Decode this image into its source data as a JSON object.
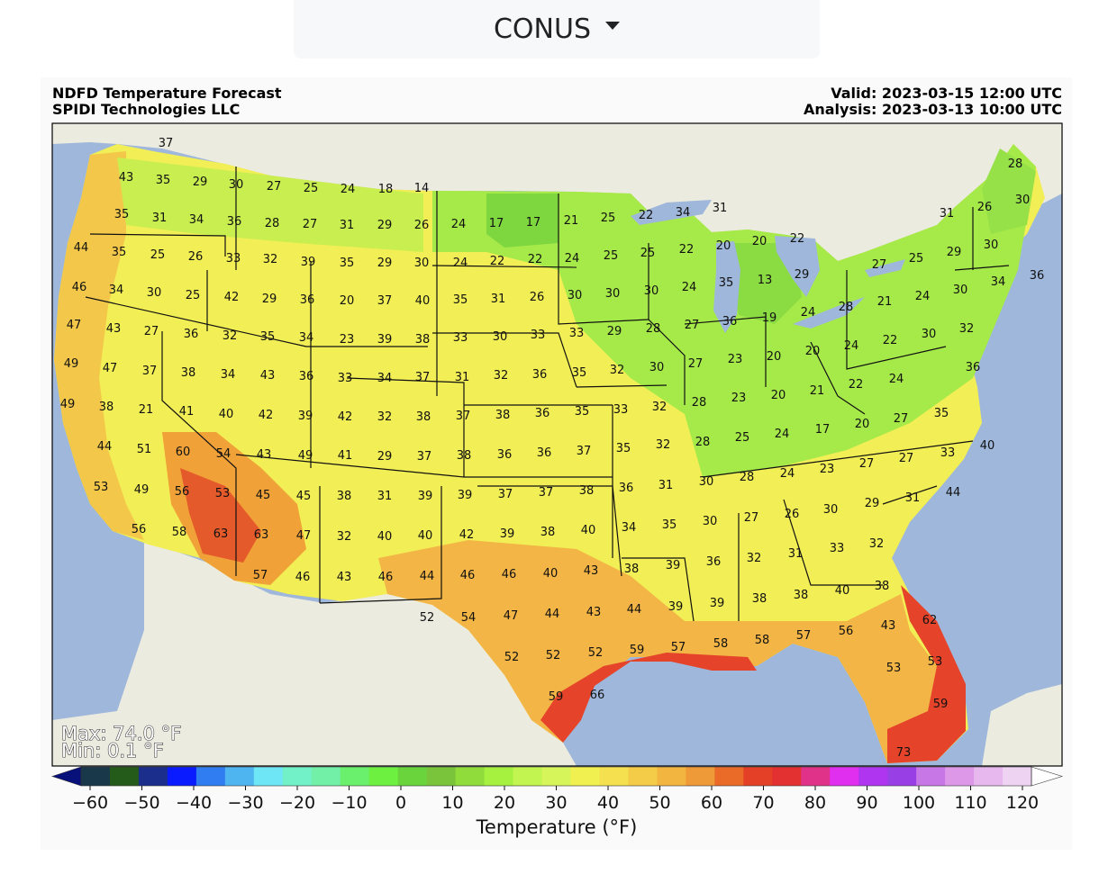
{
  "region_selector": {
    "value": "CONUS"
  },
  "header": {
    "title": "NDFD Temperature Forecast",
    "org": "SPIDI Technologies LLC",
    "valid": "Valid: 2023-03-15 12:00 UTC",
    "analysis": "Analysis: 2023-03-13 10:00 UTC"
  },
  "stats": {
    "max": "Max: 74.0 °F",
    "min": "Min: 0.1 °F"
  },
  "colorbar": {
    "label": "Temperature (°F)",
    "ticks": [
      "−60",
      "−50",
      "−40",
      "−30",
      "−20",
      "−10",
      "0",
      "10",
      "20",
      "30",
      "40",
      "50",
      "60",
      "70",
      "80",
      "90",
      "100",
      "110",
      "120"
    ],
    "colors": [
      "#08107a",
      "#19394a",
      "#245a1a",
      "#1b2e8c",
      "#0a1cff",
      "#2f7df0",
      "#4fb5f0",
      "#6ee6f5",
      "#72f0c8",
      "#72f0a8",
      "#6bf06e",
      "#6ef040",
      "#6ad43c",
      "#79c43a",
      "#8fdc3a",
      "#a6f040",
      "#c2f550",
      "#d6f55a",
      "#f0f050",
      "#f5e050",
      "#f5cc48",
      "#f2b540",
      "#ef9a38",
      "#ea6a28",
      "#e44028",
      "#e33030",
      "#e03288",
      "#e12ff0",
      "#b035f0",
      "#9840e6",
      "#c878e6",
      "#dd98e8",
      "#e6b8ee",
      "#efd3f3",
      "#ffffff"
    ],
    "range": [
      -60,
      120
    ]
  },
  "stations": [
    [
      "37",
      184,
      158
    ],
    [
      "43",
      140,
      196
    ],
    [
      "35",
      181,
      199
    ],
    [
      "29",
      222,
      201
    ],
    [
      "30",
      262,
      204
    ],
    [
      "27",
      304,
      206
    ],
    [
      "25",
      345,
      208
    ],
    [
      "24",
      386,
      209
    ],
    [
      "18",
      428,
      209
    ],
    [
      "14",
      468,
      208
    ],
    [
      "35",
      135,
      237
    ],
    [
      "31",
      177,
      241
    ],
    [
      "34",
      218,
      243
    ],
    [
      "36",
      260,
      245
    ],
    [
      "28",
      302,
      247
    ],
    [
      "27",
      344,
      248
    ],
    [
      "31",
      385,
      249
    ],
    [
      "29",
      427,
      249
    ],
    [
      "26",
      468,
      249
    ],
    [
      "24",
      509,
      248
    ],
    [
      "17",
      551,
      247
    ],
    [
      "17",
      592,
      246
    ],
    [
      "21",
      634,
      244
    ],
    [
      "25",
      675,
      241
    ],
    [
      "22",
      717,
      238
    ],
    [
      "34",
      758,
      235
    ],
    [
      "31",
      799,
      230
    ],
    [
      "26",
      1093,
      229
    ],
    [
      "30",
      1135,
      221
    ],
    [
      "28",
      1127,
      181
    ],
    [
      "31",
      1051,
      236
    ],
    [
      "44",
      90,
      274
    ],
    [
      "35",
      132,
      279
    ],
    [
      "25",
      175,
      282
    ],
    [
      "26",
      217,
      284
    ],
    [
      "33",
      259,
      286
    ],
    [
      "32",
      300,
      287
    ],
    [
      "39",
      342,
      290
    ],
    [
      "35",
      385,
      291
    ],
    [
      "29",
      427,
      291
    ],
    [
      "30",
      468,
      291
    ],
    [
      "24",
      511,
      291
    ],
    [
      "22",
      552,
      289
    ],
    [
      "22",
      594,
      287
    ],
    [
      "24",
      635,
      286
    ],
    [
      "25",
      678,
      283
    ],
    [
      "25",
      719,
      280
    ],
    [
      "22",
      762,
      276
    ],
    [
      "20",
      803,
      272
    ],
    [
      "20",
      843,
      267
    ],
    [
      "22",
      885,
      264
    ],
    [
      "27",
      976,
      293
    ],
    [
      "25",
      1017,
      286
    ],
    [
      "29",
      1059,
      279
    ],
    [
      "30",
      1100,
      271
    ],
    [
      "36",
      1151,
      305
    ],
    [
      "34",
      1108,
      312
    ],
    [
      "46",
      88,
      318
    ],
    [
      "34",
      129,
      321
    ],
    [
      "30",
      171,
      324
    ],
    [
      "25",
      214,
      327
    ],
    [
      "42",
      257,
      329
    ],
    [
      "29",
      299,
      331
    ],
    [
      "36",
      341,
      332
    ],
    [
      "20",
      385,
      333
    ],
    [
      "37",
      427,
      333
    ],
    [
      "40",
      469,
      333
    ],
    [
      "35",
      511,
      332
    ],
    [
      "31",
      553,
      331
    ],
    [
      "26",
      596,
      329
    ],
    [
      "30",
      638,
      327
    ],
    [
      "30",
      680,
      325
    ],
    [
      "30",
      723,
      322
    ],
    [
      "24",
      765,
      318
    ],
    [
      "35",
      806,
      313
    ],
    [
      "13",
      849,
      310
    ],
    [
      "29",
      890,
      304
    ],
    [
      "30",
      1066,
      321
    ],
    [
      "24",
      1024,
      328
    ],
    [
      "21",
      982,
      334
    ],
    [
      "28",
      939,
      340
    ],
    [
      "47",
      82,
      360
    ],
    [
      "43",
      126,
      364
    ],
    [
      "27",
      168,
      367
    ],
    [
      "36",
      212,
      370
    ],
    [
      "32",
      255,
      372
    ],
    [
      "35",
      297,
      373
    ],
    [
      "34",
      340,
      374
    ],
    [
      "23",
      385,
      376
    ],
    [
      "39",
      427,
      376
    ],
    [
      "38",
      469,
      376
    ],
    [
      "33",
      511,
      374
    ],
    [
      "30",
      555,
      373
    ],
    [
      "33",
      597,
      371
    ],
    [
      "33",
      640,
      369
    ],
    [
      "29",
      682,
      367
    ],
    [
      "28",
      725,
      364
    ],
    [
      "27",
      768,
      360
    ],
    [
      "36",
      810,
      356
    ],
    [
      "19",
      854,
      352
    ],
    [
      "24",
      897,
      346
    ],
    [
      "32",
      1073,
      364
    ],
    [
      "30",
      1031,
      370
    ],
    [
      "22",
      988,
      377
    ],
    [
      "24",
      945,
      383
    ],
    [
      "49",
      79,
      403
    ],
    [
      "47",
      122,
      408
    ],
    [
      "37",
      166,
      411
    ],
    [
      "38",
      209,
      413
    ],
    [
      "34",
      253,
      415
    ],
    [
      "43",
      297,
      416
    ],
    [
      "36",
      340,
      417
    ],
    [
      "33",
      383,
      419
    ],
    [
      "34",
      427,
      419
    ],
    [
      "37",
      469,
      418
    ],
    [
      "31",
      513,
      418
    ],
    [
      "32",
      556,
      416
    ],
    [
      "36",
      599,
      415
    ],
    [
      "35",
      643,
      413
    ],
    [
      "32",
      685,
      410
    ],
    [
      "30",
      729,
      407
    ],
    [
      "27",
      772,
      403
    ],
    [
      "23",
      816,
      398
    ],
    [
      "20",
      859,
      395
    ],
    [
      "20",
      902,
      389
    ],
    [
      "36",
      1080,
      407
    ],
    [
      "24",
      995,
      420
    ],
    [
      "22",
      950,
      426
    ],
    [
      "49",
      75,
      448
    ],
    [
      "38",
      118,
      451
    ],
    [
      "21",
      162,
      454
    ],
    [
      "41",
      207,
      456
    ],
    [
      "40",
      251,
      459
    ],
    [
      "42",
      295,
      460
    ],
    [
      "39",
      339,
      461
    ],
    [
      "42",
      383,
      462
    ],
    [
      "32",
      427,
      462
    ],
    [
      "38",
      470,
      462
    ],
    [
      "37",
      514,
      461
    ],
    [
      "38",
      558,
      460
    ],
    [
      "36",
      602,
      458
    ],
    [
      "35",
      646,
      456
    ],
    [
      "33",
      689,
      454
    ],
    [
      "32",
      732,
      451
    ],
    [
      "28",
      776,
      446
    ],
    [
      "23",
      820,
      441
    ],
    [
      "20",
      864,
      438
    ],
    [
      "21",
      907,
      433
    ],
    [
      "27",
      1000,
      464
    ],
    [
      "35",
      1045,
      458
    ],
    [
      "20",
      957,
      470
    ],
    [
      "44",
      116,
      495
    ],
    [
      "51",
      160,
      498
    ],
    [
      "60",
      203,
      501
    ],
    [
      "54",
      248,
      503
    ],
    [
      "43",
      293,
      504
    ],
    [
      "49",
      339,
      505
    ],
    [
      "41",
      383,
      505
    ],
    [
      "29",
      427,
      506
    ],
    [
      "37",
      471,
      506
    ],
    [
      "38",
      515,
      505
    ],
    [
      "36",
      560,
      504
    ],
    [
      "36",
      604,
      502
    ],
    [
      "37",
      648,
      500
    ],
    [
      "35",
      692,
      497
    ],
    [
      "32",
      736,
      493
    ],
    [
      "28",
      780,
      490
    ],
    [
      "25",
      824,
      485
    ],
    [
      "24",
      868,
      481
    ],
    [
      "17",
      913,
      476
    ],
    [
      "40",
      1096,
      494
    ],
    [
      "33",
      1052,
      502
    ],
    [
      "27",
      1006,
      508
    ],
    [
      "27",
      962,
      514
    ],
    [
      "23",
      918,
      520
    ],
    [
      "53",
      112,
      540
    ],
    [
      "49",
      157,
      543
    ],
    [
      "56",
      202,
      545
    ],
    [
      "53",
      247,
      547
    ],
    [
      "45",
      292,
      549
    ],
    [
      "45",
      337,
      550
    ],
    [
      "38",
      382,
      550
    ],
    [
      "31",
      427,
      550
    ],
    [
      "39",
      472,
      550
    ],
    [
      "39",
      516,
      549
    ],
    [
      "37",
      561,
      548
    ],
    [
      "37",
      606,
      546
    ],
    [
      "38",
      651,
      544
    ],
    [
      "36",
      695,
      541
    ],
    [
      "31",
      739,
      538
    ],
    [
      "30",
      784,
      534
    ],
    [
      "28",
      829,
      529
    ],
    [
      "24",
      874,
      525
    ],
    [
      "44",
      1058,
      546
    ],
    [
      "31",
      1013,
      552
    ],
    [
      "29",
      968,
      558
    ],
    [
      "30",
      922,
      565
    ],
    [
      "56",
      154,
      587
    ],
    [
      "58",
      199,
      590
    ],
    [
      "63",
      245,
      592
    ],
    [
      "63",
      290,
      593
    ],
    [
      "47",
      337,
      594
    ],
    [
      "32",
      382,
      595
    ],
    [
      "40",
      427,
      595
    ],
    [
      "40",
      472,
      594
    ],
    [
      "42",
      518,
      593
    ],
    [
      "39",
      563,
      592
    ],
    [
      "38",
      608,
      590
    ],
    [
      "40",
      653,
      588
    ],
    [
      "34",
      698,
      585
    ],
    [
      "35",
      743,
      582
    ],
    [
      "30",
      788,
      578
    ],
    [
      "27",
      834,
      574
    ],
    [
      "26",
      879,
      570
    ],
    [
      "32",
      973,
      603
    ],
    [
      "33",
      929,
      608
    ],
    [
      "57",
      289,
      638
    ],
    [
      "46",
      336,
      640
    ],
    [
      "43",
      382,
      640
    ],
    [
      "46",
      428,
      640
    ],
    [
      "44",
      474,
      639
    ],
    [
      "46",
      519,
      638
    ],
    [
      "46",
      565,
      637
    ],
    [
      "40",
      611,
      636
    ],
    [
      "43",
      656,
      633
    ],
    [
      "38",
      701,
      631
    ],
    [
      "39",
      747,
      627
    ],
    [
      "36",
      792,
      623
    ],
    [
      "32",
      837,
      619
    ],
    [
      "31",
      883,
      614
    ],
    [
      "38",
      979,
      650
    ],
    [
      "40",
      935,
      655
    ],
    [
      "38",
      889,
      660
    ],
    [
      "38",
      843,
      664
    ],
    [
      "52",
      474,
      685
    ],
    [
      "54",
      520,
      685
    ],
    [
      "47",
      567,
      683
    ],
    [
      "44",
      613,
      681
    ],
    [
      "43",
      659,
      679
    ],
    [
      "44",
      704,
      676
    ],
    [
      "39",
      750,
      673
    ],
    [
      "39",
      796,
      669
    ],
    [
      "62",
      1032,
      688
    ],
    [
      "43",
      986,
      694
    ],
    [
      "56",
      939,
      700
    ],
    [
      "57",
      892,
      705
    ],
    [
      "58",
      846,
      710
    ],
    [
      "58",
      800,
      714
    ],
    [
      "52",
      568,
      729
    ],
    [
      "52",
      614,
      727
    ],
    [
      "52",
      661,
      724
    ],
    [
      "59",
      707,
      721
    ],
    [
      "57",
      753,
      718
    ],
    [
      "53",
      1038,
      734
    ],
    [
      "53",
      992,
      741
    ],
    [
      "59",
      617,
      773
    ],
    [
      "66",
      663,
      771
    ],
    [
      "59",
      1044,
      781
    ],
    [
      "73",
      1003,
      835
    ]
  ]
}
